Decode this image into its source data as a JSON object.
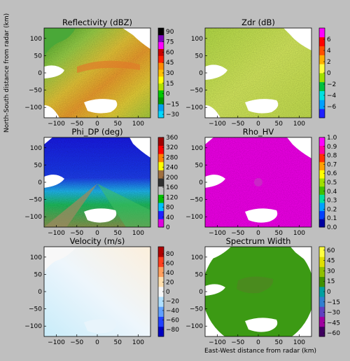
{
  "figure": {
    "ylabel": "North-South distance from radar (km)",
    "xlabel": "East-West distance from radar (km)"
  },
  "chart_data": [
    {
      "type": "heatmap",
      "title": "Reflectivity (dBZ)",
      "xlim": [
        -130,
        130
      ],
      "ylim": [
        -130,
        130
      ],
      "xticks": [
        -100,
        -50,
        0,
        50,
        100
      ],
      "yticks": [
        -100,
        -50,
        0,
        50,
        100
      ],
      "colorbar": {
        "range": [
          -35,
          95
        ],
        "ticks": [
          90,
          75,
          60,
          45,
          30,
          15,
          0,
          -15,
          -30
        ],
        "colors": [
          "#00d8ff",
          "#00a0f0",
          "#009900",
          "#00c800",
          "#b0e000",
          "#ffff00",
          "#ffc000",
          "#ff8c00",
          "#ff2000",
          "#c80000",
          "#ff00ff",
          "#8000c0",
          "#000000"
        ]
      }
    },
    {
      "type": "heatmap",
      "title": "Zdr (dB)",
      "xlim": [
        -130,
        130
      ],
      "ylim": [
        -130,
        130
      ],
      "xticks": [
        -100,
        -50,
        0,
        50,
        100
      ],
      "yticks": [
        -100,
        -50,
        0,
        50,
        100
      ],
      "colorbar": {
        "range": [
          -8,
          8
        ],
        "ticks": [
          6,
          4,
          2,
          0,
          -2,
          -4,
          -6
        ],
        "colors": [
          "#2020ff",
          "#00a0ff",
          "#00e0e0",
          "#00c040",
          "#a0e000",
          "#ffff40",
          "#ffb000",
          "#ff5000",
          "#ff0000",
          "#ff00ff"
        ]
      }
    },
    {
      "type": "heatmap",
      "title": "Phi_DP (deg)",
      "xlim": [
        -130,
        130
      ],
      "ylim": [
        -130,
        130
      ],
      "xticks": [
        -100,
        -50,
        0,
        50,
        100
      ],
      "yticks": [
        -100,
        -50,
        0,
        50,
        100
      ],
      "colorbar": {
        "range": [
          0,
          360
        ],
        "ticks": [
          360,
          320,
          280,
          240,
          200,
          160,
          120,
          80,
          40,
          0
        ],
        "colors": [
          "#e000e0",
          "#2020ff",
          "#00c0ff",
          "#00c000",
          "#c0c0c0",
          "#303030",
          "#a07040",
          "#ffff00",
          "#ff8000",
          "#ff0000",
          "#a00000"
        ]
      }
    },
    {
      "type": "heatmap",
      "title": "Rho_HV",
      "xlim": [
        -130,
        130
      ],
      "ylim": [
        -130,
        130
      ],
      "xticks": [
        -100,
        -50,
        0,
        50,
        100
      ],
      "yticks": [
        -100,
        -50,
        0,
        50,
        100
      ],
      "colorbar": {
        "range": [
          0,
          1
        ],
        "ticks": [
          "1.0",
          "0.9",
          "0.8",
          "0.7",
          "0.6",
          "0.5",
          "0.4",
          "0.3",
          "0.2",
          "0.1",
          "0.0"
        ],
        "colors": [
          "#0000a0",
          "#0040ff",
          "#00a0ff",
          "#00e0a0",
          "#40c000",
          "#a0e000",
          "#ffff00",
          "#ffa000",
          "#ff3000",
          "#ff00a0",
          "#ff00ff"
        ]
      }
    },
    {
      "type": "heatmap",
      "title": "Velocity (m/s)",
      "xlim": [
        -130,
        130
      ],
      "ylim": [
        -130,
        130
      ],
      "xticks": [
        -100,
        -50,
        0,
        50,
        100
      ],
      "yticks": [
        -100,
        -50,
        0,
        50,
        100
      ],
      "colorbar": {
        "range": [
          -95,
          95
        ],
        "ticks": [
          80,
          60,
          40,
          20,
          0,
          -20,
          -40,
          -60,
          -80
        ],
        "colors": [
          "#0000c0",
          "#2040ff",
          "#60a0ff",
          "#b0e0ff",
          "#f8f8f8",
          "#ffe0b0",
          "#ffa060",
          "#ff4020",
          "#b00000"
        ]
      }
    },
    {
      "type": "heatmap",
      "title": "Spectrum Width",
      "xlim": [
        -130,
        130
      ],
      "ylim": [
        -130,
        130
      ],
      "xticks": [
        -100,
        -50,
        0,
        50,
        100
      ],
      "yticks": [
        -100,
        -50,
        0,
        50,
        100
      ],
      "colorbar": {
        "range": [
          -65,
          65
        ],
        "ticks": [
          60,
          45,
          30,
          15,
          0,
          -15,
          -30,
          -45,
          -60
        ],
        "colors": [
          "#400060",
          "#a000a0",
          "#6040c0",
          "#3080d0",
          "#00a0a0",
          "#409000",
          "#90c000",
          "#e0e000",
          "#ffff40"
        ]
      }
    }
  ]
}
